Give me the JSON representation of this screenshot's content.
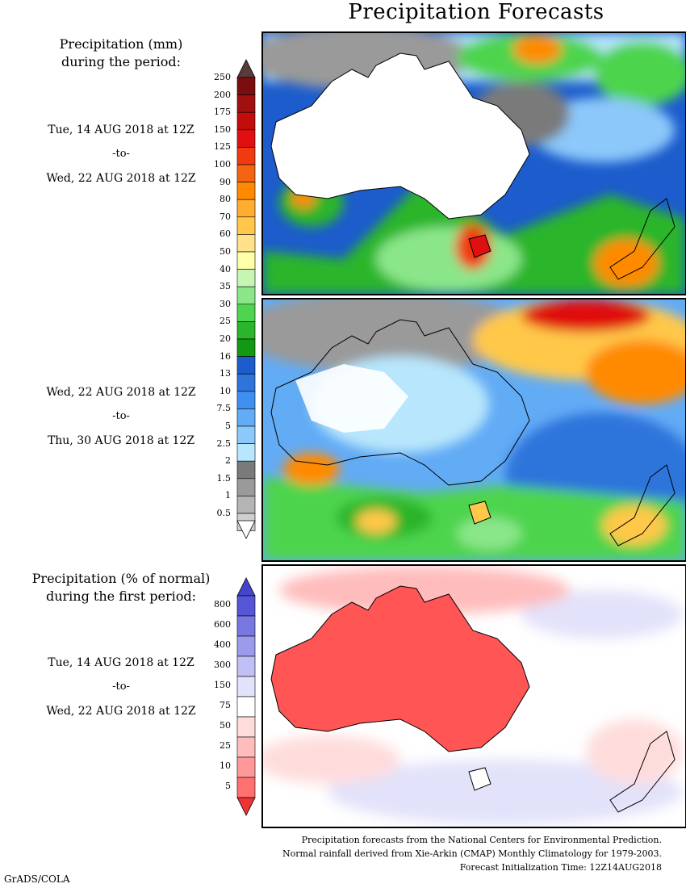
{
  "title": "Precipitation Forecasts",
  "legend_mm": {
    "heading_line1": "Precipitation (mm)",
    "heading_line2": "during the period:",
    "levels": [
      "250",
      "200",
      "175",
      "150",
      "125",
      "100",
      "90",
      "80",
      "70",
      "60",
      "50",
      "40",
      "35",
      "30",
      "25",
      "20",
      "16",
      "13",
      "10",
      "7.5",
      "5",
      "2.5",
      "2",
      "1.5",
      "1",
      "0.5"
    ],
    "colors": [
      "#7a0d0d",
      "#a01010",
      "#c30d0d",
      "#e01010",
      "#f03a10",
      "#f56410",
      "#ff8a00",
      "#ffad30",
      "#ffc84a",
      "#ffe18a",
      "#ffffaa",
      "#c7f5b4",
      "#8be68a",
      "#4ed44e",
      "#2bb52b",
      "#119911",
      "#1c5ccc",
      "#2e74db",
      "#3f8ff0",
      "#62abf5",
      "#8cc8fa",
      "#b8e6fc",
      "#7a7a7a",
      "#9a9a9a",
      "#b4b4b4",
      "#cfcfcf"
    ],
    "top_arrow_color": "#5a3a3a"
  },
  "period1": {
    "start": "Tue, 14 AUG 2018 at 12Z",
    "to": "-to-",
    "end": "Wed, 22 AUG 2018 at 12Z"
  },
  "period2": {
    "start": "Wed, 22 AUG 2018 at 12Z",
    "to": "-to-",
    "end": "Thu, 30 AUG 2018 at 12Z"
  },
  "legend_pct": {
    "heading_line1": "Precipitation (% of normal)",
    "heading_line2": "during the first period:",
    "levels": [
      "800",
      "600",
      "400",
      "300",
      "150",
      "75",
      "50",
      "25",
      "10",
      "5"
    ],
    "colors": [
      "#5555d8",
      "#7878e2",
      "#9b9bec",
      "#c0c0f4",
      "#e2e2fa",
      "#ffffff",
      "#ffdcdc",
      "#ffbcbc",
      "#ff9898",
      "#ff7070"
    ],
    "top_arrow_color": "#4444cc",
    "bottom_arrow_color": "#ee3333"
  },
  "period3": {
    "start": "Tue, 14 AUG 2018 at 12Z",
    "to": "-to-",
    "end": "Wed, 22 AUG 2018 at 12Z"
  },
  "footer": {
    "line1": "Precipitation forecasts from the National Centers for Environmental Prediction.",
    "line2": "Normal rainfall derived from Xie-Arkin (CMAP) Monthly Climatology for 1979-2003.",
    "line3": "Forecast Initialization Time: 12Z14AUG2018"
  },
  "credit": "GrADS/COLA"
}
